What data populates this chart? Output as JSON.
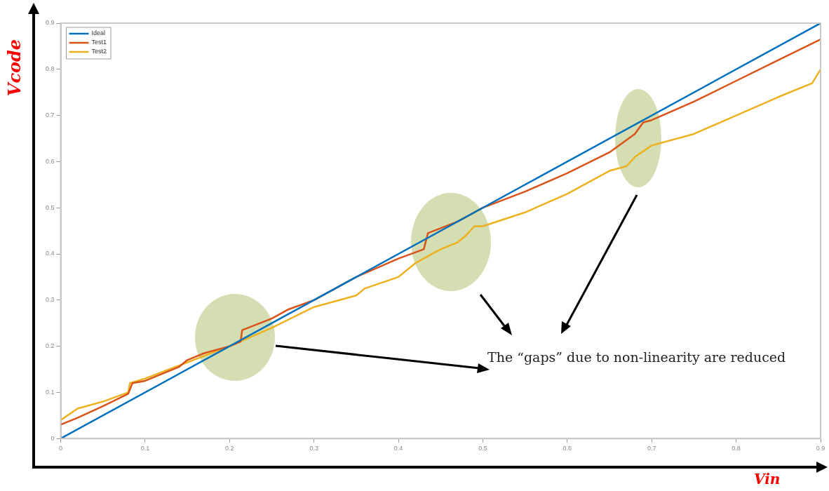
{
  "chart_data": {
    "type": "line",
    "xlabel": "Vin",
    "ylabel": "Vcode",
    "xlim": [
      0,
      0.9
    ],
    "ylim": [
      0,
      0.9
    ],
    "xticks": [
      0,
      0.1,
      0.2,
      0.3,
      0.4,
      0.5,
      0.6,
      0.7,
      0.8,
      0.9
    ],
    "yticks": [
      0,
      0.1,
      0.2,
      0.3,
      0.4,
      0.5,
      0.6,
      0.7,
      0.8,
      0.9
    ],
    "legend": "top left",
    "marker": "none",
    "line_style": "solid",
    "annotations": [
      "The “gaps” due to non-linearity are reduced"
    ],
    "series": [
      {
        "name": "Ideal",
        "color": "#0072bd",
        "x": [
          0,
          0.9
        ],
        "values": [
          0,
          0.9
        ]
      },
      {
        "name": "Test1",
        "color": "#d95319",
        "x": [
          0,
          0.02,
          0.05,
          0.08,
          0.085,
          0.1,
          0.14,
          0.15,
          0.17,
          0.2,
          0.213,
          0.215,
          0.25,
          0.27,
          0.3,
          0.33,
          0.35,
          0.4,
          0.43,
          0.435,
          0.47,
          0.5,
          0.55,
          0.6,
          0.65,
          0.68,
          0.69,
          0.7,
          0.75,
          0.8,
          0.85,
          0.9
        ],
        "values": [
          0.03,
          0.045,
          0.07,
          0.097,
          0.12,
          0.125,
          0.155,
          0.17,
          0.185,
          0.2,
          0.21,
          0.235,
          0.26,
          0.28,
          0.3,
          0.33,
          0.35,
          0.39,
          0.41,
          0.445,
          0.47,
          0.5,
          0.535,
          0.575,
          0.62,
          0.66,
          0.685,
          0.69,
          0.73,
          0.775,
          0.82,
          0.865
        ]
      },
      {
        "name": "Test2",
        "color": "#edb120",
        "x": [
          0,
          0.02,
          0.05,
          0.08,
          0.082,
          0.1,
          0.15,
          0.2,
          0.25,
          0.3,
          0.35,
          0.36,
          0.4,
          0.42,
          0.45,
          0.47,
          0.48,
          0.49,
          0.5,
          0.55,
          0.6,
          0.65,
          0.67,
          0.68,
          0.7,
          0.75,
          0.8,
          0.85,
          0.89,
          0.9
        ],
        "values": [
          0.04,
          0.065,
          0.08,
          0.1,
          0.12,
          0.13,
          0.165,
          0.2,
          0.24,
          0.285,
          0.31,
          0.325,
          0.35,
          0.38,
          0.41,
          0.425,
          0.44,
          0.46,
          0.46,
          0.49,
          0.53,
          0.58,
          0.59,
          0.61,
          0.635,
          0.66,
          0.7,
          0.74,
          0.77,
          0.8
        ]
      }
    ]
  }
}
